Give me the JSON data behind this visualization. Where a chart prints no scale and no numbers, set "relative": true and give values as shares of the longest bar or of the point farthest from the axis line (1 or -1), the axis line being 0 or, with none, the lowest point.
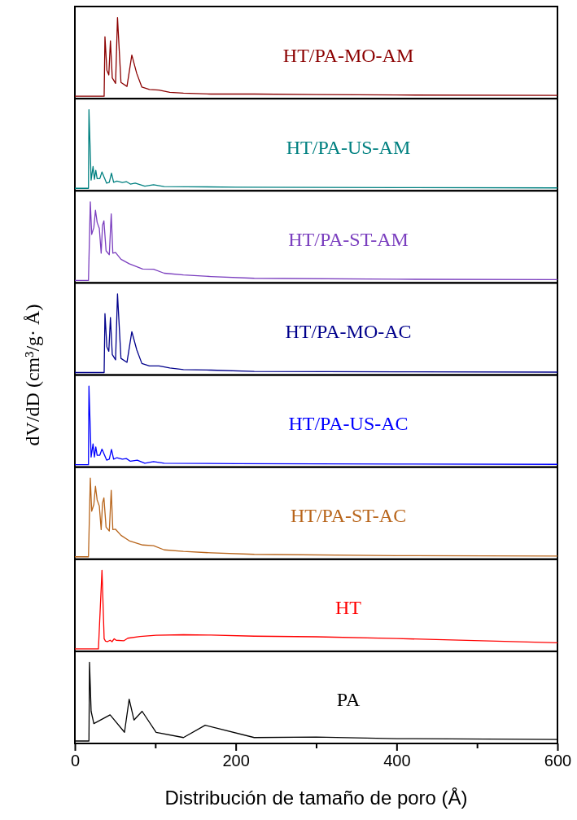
{
  "chart_data": [
    {
      "type": "line",
      "relative": true,
      "xlim": [
        0,
        600
      ],
      "tick_labels": false,
      "x": [
        0,
        36.4,
        37.4,
        39.8,
        42.2,
        44.2,
        46.5,
        50.6,
        53,
        57.3,
        64.8,
        70.8,
        76.9,
        83.3,
        92.7,
        104.6,
        118,
        135,
        169,
        223,
        300,
        400,
        600
      ],
      "series": [
        {
          "name": "HT/PA-MO-AM",
          "color": "#8b0000",
          "values": [
            0,
            0,
            0.756,
            0.33,
            0.27,
            0.705,
            0.233,
            0.163,
            1,
            0.174,
            0.124,
            0.523,
            0.29,
            0.116,
            0.085,
            0.078,
            0.05,
            0.039,
            0.027,
            0.027,
            0.02,
            0.015,
            0.01
          ]
        }
      ]
    },
    {
      "type": "line",
      "relative": true,
      "xlim": [
        0,
        600
      ],
      "tick_labels": false,
      "x": [
        0,
        16.9,
        17.5,
        20.2,
        22.6,
        24.3,
        26,
        27.7,
        31,
        33.7,
        39.5,
        42.8,
        45.5,
        48.2,
        52.3,
        59,
        64,
        69,
        75,
        87,
        97.8,
        111,
        200,
        400,
        600
      ],
      "series": [
        {
          "name": "HT/PA-US-AM",
          "color": "#008080",
          "values": [
            0,
            0,
            1,
            0.104,
            0.277,
            0.115,
            0.23,
            0.123,
            0.123,
            0.208,
            0.065,
            0.077,
            0.192,
            0.077,
            0.092,
            0.073,
            0.085,
            0.054,
            0.065,
            0.027,
            0.046,
            0.023,
            0.015,
            0.01,
            0.005
          ]
        }
      ]
    },
    {
      "type": "line",
      "relative": true,
      "xlim": [
        0,
        600
      ],
      "tick_labels": false,
      "x": [
        0,
        16.9,
        19.2,
        20.9,
        23.6,
        25.6,
        27.7,
        30.4,
        32.7,
        34.4,
        36.1,
        38.8,
        42.8,
        45.2,
        47.2,
        50.6,
        57.3,
        67.5,
        84.3,
        97.8,
        111,
        135,
        169,
        223,
        400,
        600
      ],
      "series": [
        {
          "name": "HT/PA-ST-AM",
          "color": "#7b3fbf",
          "values": [
            0,
            0,
            1,
            0.585,
            0.673,
            0.892,
            0.738,
            0.662,
            0.346,
            0.7,
            0.758,
            0.377,
            0.327,
            0.846,
            0.346,
            0.354,
            0.269,
            0.212,
            0.146,
            0.142,
            0.092,
            0.069,
            0.05,
            0.027,
            0.015,
            0.01
          ]
        }
      ]
    },
    {
      "type": "line",
      "relative": true,
      "xlim": [
        0,
        600
      ],
      "tick_labels": false,
      "x": [
        0,
        36.4,
        37.4,
        39.8,
        42.2,
        44.2,
        46.5,
        50.6,
        53,
        57.3,
        64.8,
        70.8,
        76.9,
        83.3,
        92.7,
        104.6,
        118,
        135,
        169,
        223,
        400,
        600
      ],
      "series": [
        {
          "name": "HT/PA-MO-AC",
          "color": "#00008b",
          "values": [
            0,
            0,
            0.75,
            0.327,
            0.27,
            0.7,
            0.23,
            0.162,
            1,
            0.18,
            0.13,
            0.52,
            0.29,
            0.115,
            0.085,
            0.085,
            0.058,
            0.038,
            0.031,
            0.015,
            0.01,
            0.005
          ]
        }
      ]
    },
    {
      "type": "line",
      "relative": true,
      "ylabel": "dV/dD (cm³/g· Å)",
      "xlim": [
        0,
        600
      ],
      "tick_labels": false,
      "x": [
        0,
        16.9,
        17.5,
        20.2,
        22.6,
        24.3,
        26,
        27.7,
        31,
        33.7,
        39.5,
        42.8,
        45.5,
        48.2,
        52.3,
        59,
        64,
        69,
        77.6,
        87,
        97.8,
        111,
        200,
        400,
        600
      ],
      "series": [
        {
          "name": "HT/PA-US-AC",
          "color": "#0000ff",
          "values": [
            0,
            0,
            1,
            0.097,
            0.264,
            0.097,
            0.225,
            0.12,
            0.12,
            0.198,
            0.058,
            0.07,
            0.194,
            0.07,
            0.089,
            0.07,
            0.078,
            0.043,
            0.058,
            0.019,
            0.039,
            0.019,
            0.012,
            0.008,
            0.004
          ]
        }
      ]
    },
    {
      "type": "line",
      "relative": true,
      "xlim": [
        0,
        600
      ],
      "tick_labels": false,
      "x": [
        0,
        16.9,
        19.2,
        20.9,
        23.6,
        25.6,
        27.7,
        30.4,
        32.7,
        34.4,
        36.1,
        38.8,
        42.8,
        45.2,
        47.2,
        50.6,
        57.3,
        67.5,
        84.3,
        97.8,
        111,
        135,
        169,
        223,
        400,
        600
      ],
      "series": [
        {
          "name": "HT/PA-ST-AC",
          "color": "#b8651b",
          "values": [
            0,
            0,
            1,
            0.58,
            0.665,
            0.896,
            0.723,
            0.646,
            0.346,
            0.685,
            0.75,
            0.377,
            0.327,
            0.846,
            0.346,
            0.35,
            0.273,
            0.204,
            0.15,
            0.142,
            0.088,
            0.069,
            0.05,
            0.031,
            0.015,
            0.01
          ]
        }
      ]
    },
    {
      "type": "line",
      "relative": true,
      "xlim": [
        0,
        600
      ],
      "tick_labels": false,
      "x": [
        0,
        29.3,
        33.7,
        36.4,
        38.1,
        40.5,
        43.8,
        46.2,
        48.9,
        51.3,
        60.7,
        65.8,
        81,
        101,
        135,
        169,
        223,
        300,
        400,
        600
      ],
      "series": [
        {
          "name": "HT",
          "color": "#ff0000",
          "values": [
            0,
            0,
            1,
            0.129,
            0.099,
            0.092,
            0.11,
            0.092,
            0.129,
            0.11,
            0.103,
            0.136,
            0.158,
            0.173,
            0.18,
            0.176,
            0.162,
            0.154,
            0.132,
            0.077
          ]
        }
      ]
    },
    {
      "type": "line",
      "relative": true,
      "xlabel": "Distribución de tamaño de poro (Å)",
      "xlim": [
        0,
        600
      ],
      "tick_labels": "x",
      "xticks": [
        0,
        {
          "value": 100,
          "label": null
        },
        200,
        {
          "value": 300,
          "label": null
        },
        400,
        {
          "value": 500,
          "label": null
        },
        600
      ],
      "x": [
        0,
        17.5,
        18.2,
        20.2,
        23.6,
        43.8,
        61.7,
        67.5,
        73.5,
        83.6,
        101,
        135,
        162,
        223,
        300,
        400,
        600
      ],
      "series": [
        {
          "name": "PA",
          "color": "#000000",
          "values": [
            0,
            0,
            1,
            0.378,
            0.222,
            0.333,
            0.111,
            0.533,
            0.267,
            0.378,
            0.111,
            0.044,
            0.2,
            0.044,
            0.05,
            0.03,
            0.02
          ]
        }
      ]
    }
  ]
}
